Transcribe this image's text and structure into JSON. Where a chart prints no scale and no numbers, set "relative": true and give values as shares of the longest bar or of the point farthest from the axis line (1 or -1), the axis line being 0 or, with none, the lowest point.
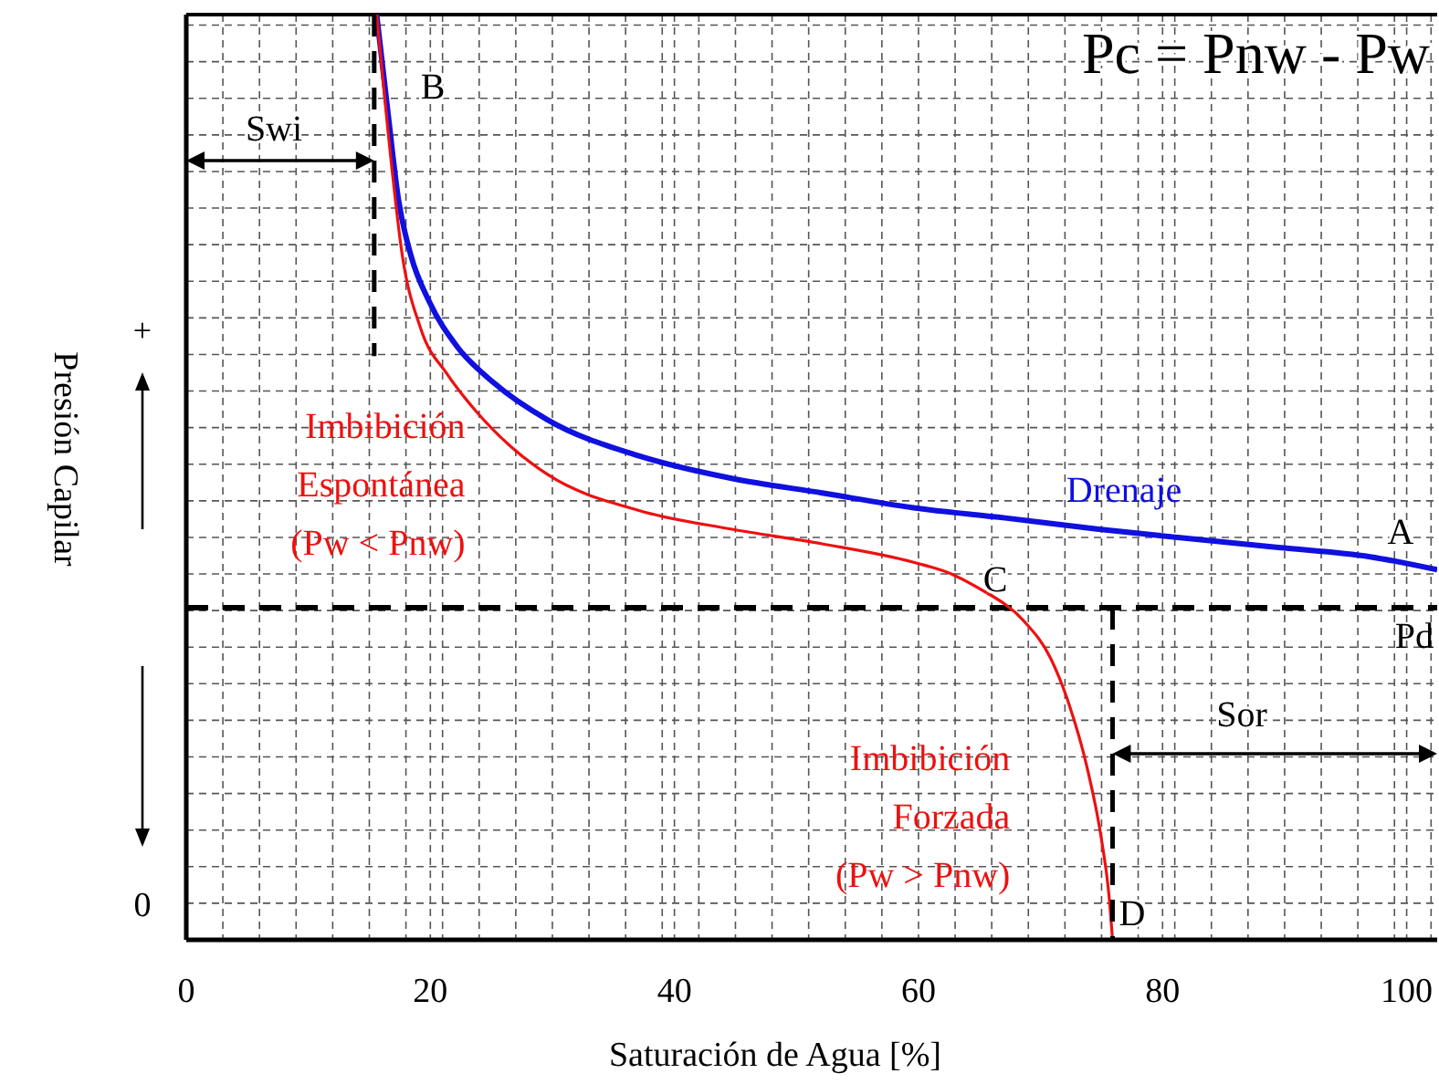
{
  "chart_data": {
    "type": "line",
    "title": "Pc = Pnw - Pw",
    "xlabel": "Saturación de Agua [%]",
    "ylabel": "Presión Capilar",
    "relative": true,
    "grid": true,
    "xlim": [
      0,
      102.5
    ],
    "xticks": [
      0,
      20,
      40,
      60,
      80,
      100,
      {
        "value": 3,
        "label": null
      },
      {
        "value": 6,
        "label": null
      },
      {
        "value": 9,
        "label": null
      },
      {
        "value": 12,
        "label": null
      },
      {
        "value": 15,
        "label": null
      },
      {
        "value": 18,
        "label": null
      },
      {
        "value": 21,
        "label": null
      },
      {
        "value": 24,
        "label": null
      },
      {
        "value": 27,
        "label": null
      },
      {
        "value": 30,
        "label": null
      },
      {
        "value": 33,
        "label": null
      },
      {
        "value": 36,
        "label": null
      },
      {
        "value": 39,
        "label": null
      },
      {
        "value": 42,
        "label": null
      },
      {
        "value": 45,
        "label": null
      },
      {
        "value": 48,
        "label": null
      },
      {
        "value": 51,
        "label": null
      },
      {
        "value": 54,
        "label": null
      },
      {
        "value": 57,
        "label": null
      },
      {
        "value": 63,
        "label": null
      },
      {
        "value": 66,
        "label": null
      },
      {
        "value": 69,
        "label": null
      },
      {
        "value": 72,
        "label": null
      },
      {
        "value": 75,
        "label": null
      },
      {
        "value": 78,
        "label": null
      },
      {
        "value": 81,
        "label": null
      },
      {
        "value": 84,
        "label": null
      },
      {
        "value": 87,
        "label": null
      },
      {
        "value": 90,
        "label": null
      },
      {
        "value": 93,
        "label": null
      },
      {
        "value": 96,
        "label": null
      },
      {
        "value": 99,
        "label": null
      },
      {
        "value": 102,
        "label": null
      }
    ],
    "series": [
      {
        "name": "Drenaje",
        "color": "#1010e0",
        "x": [
          15.6,
          16.5,
          17.4,
          18.4,
          19.9,
          22.2,
          25.2,
          29.6,
          37.1,
          44.6,
          52.1,
          59.6,
          67.1,
          74.6,
          82.0,
          89.5,
          97.0,
          102.5
        ],
        "values": [
          1.0,
          0.897,
          0.799,
          0.74,
          0.69,
          0.641,
          0.602,
          0.562,
          0.523,
          0.499,
          0.483,
          0.467,
          0.456,
          0.444,
          0.434,
          0.424,
          0.414,
          0.4
        ]
      },
      {
        "name": "Imbibición Espontánea (Pw < Pnw)",
        "color": "#ee1010",
        "x": [
          15.6,
          16.5,
          17.7,
          19.2,
          21.4,
          23.7,
          26.6,
          29.6,
          37.1,
          44.6,
          52.1,
          59.6,
          62.6,
          65.6
        ],
        "values": [
          1.0,
          0.878,
          0.74,
          0.661,
          0.611,
          0.572,
          0.533,
          0.503,
          0.464,
          0.444,
          0.428,
          0.408,
          0.396,
          0.375
        ]
      },
      {
        "name": "Imbibición Forzada (Pw > Pnw)",
        "color": "#ee1010",
        "x": [
          65.6,
          68.6,
          70.8,
          72.3,
          73.8,
          75.0,
          75.6,
          75.9
        ],
        "values": [
          0.375,
          0.345,
          0.305,
          0.256,
          0.187,
          0.108,
          0.049,
          0
        ]
      },
      {
        "color": "#000000",
        "line_style": "dashed",
        "x": [
          15.4,
          15.4
        ],
        "values": [
          1.0,
          0.631
        ]
      },
      {
        "color": "#000000",
        "line_style": "dashed",
        "x": [
          75.9,
          75.9
        ],
        "values": [
          0.359,
          0
        ]
      }
    ],
    "ref_lines": [
      {
        "axis": "y",
        "value": 0.359,
        "label": "Pd",
        "color": "#000000",
        "line_style": "dashed"
      }
    ],
    "annotations": [
      "+",
      "0",
      "Swi",
      "Sor",
      "A",
      "B",
      "C",
      "D"
    ]
  }
}
